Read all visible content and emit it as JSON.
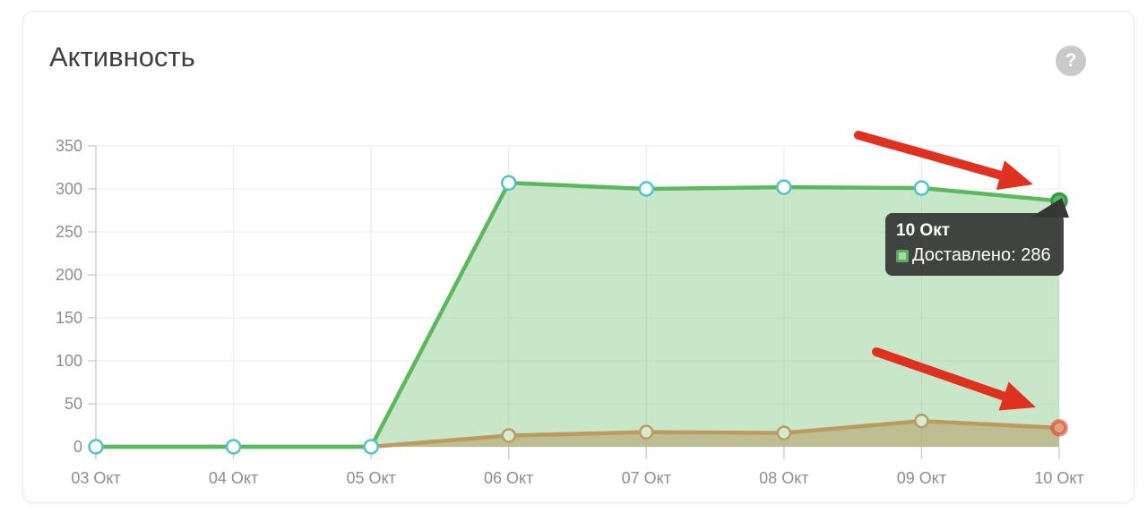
{
  "header": {
    "title": "Активность",
    "help_glyph": "?"
  },
  "tooltip": {
    "title": "10 Окт",
    "line": "Доставлено: 286"
  },
  "chart_data": {
    "type": "area",
    "title": "Активность",
    "categories": [
      "03 Окт",
      "04 Окт",
      "05 Окт",
      "06 Окт",
      "07 Окт",
      "08 Окт",
      "09 Окт",
      "10 Окт"
    ],
    "series": [
      {
        "name": "Доставлено",
        "values": [
          0,
          0,
          0,
          307,
          300,
          302,
          301,
          286
        ],
        "line_color": "#5cb85c",
        "fill_color": "rgba(124,196,124,0.42)",
        "marker": "white-teal-ring"
      },
      {
        "name": "",
        "values": [
          0,
          0,
          0,
          13,
          17,
          16,
          30,
          22
        ],
        "line_color": "#bf9a60",
        "fill_color": "rgba(176,141,79,0.45)",
        "marker": "green-tan-ring"
      }
    ],
    "xlabel": "",
    "ylabel": "",
    "ylim": [
      0,
      350
    ],
    "yticks": [
      0,
      50,
      100,
      150,
      200,
      250,
      300,
      350
    ],
    "grid": true,
    "legend_position": "none",
    "highlight_index": 7,
    "highlighted_point": {
      "category": "10 Окт",
      "series": "Доставлено",
      "value": 286
    }
  },
  "annotations": {
    "color": "#e0301f",
    "arrows": [
      {
        "from": [
          958,
          151
        ],
        "to": [
          1153,
          206
        ]
      },
      {
        "from": [
          978,
          393
        ],
        "to": [
          1156,
          455
        ]
      }
    ]
  },
  "colors": {
    "grid": "#e8e8e8",
    "axis": "#cfcfcf",
    "tick_text": "#8d8d8d",
    "marker_ring": "#4fc3cb",
    "marker_fill": "#ffffff",
    "lower_marker_fill": "#d5ebd1",
    "highlight_green_fill": "#5fb863",
    "highlight_green_ring": "#2f9e44",
    "highlight_red_fill": "#dca77c",
    "highlight_red_ring": "rgba(228,64,45,0.62)",
    "tooltip_bg": "#363636"
  }
}
